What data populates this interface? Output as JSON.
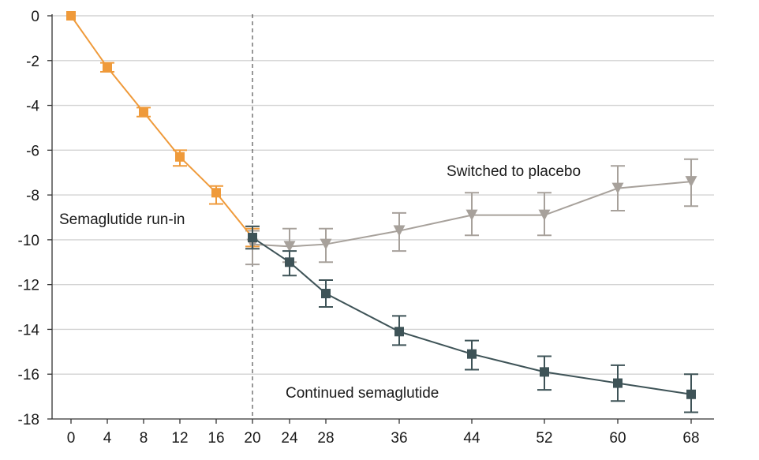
{
  "chart_data": {
    "type": "line",
    "x_ticks": [
      0,
      4,
      8,
      12,
      16,
      20,
      24,
      28,
      36,
      44,
      52,
      60,
      68
    ],
    "y_ticks": [
      0,
      -2,
      -4,
      -6,
      -8,
      -10,
      -12,
      -14,
      -16,
      -18
    ],
    "y_tick_labels": [
      "0",
      "-2",
      "-4",
      "-6",
      "-8",
      "-10",
      "-12",
      "-14",
      "-16",
      "-18"
    ],
    "ylim": [
      -18,
      0
    ],
    "grid": "horizontal",
    "reference_line_x": 20,
    "colors": {
      "run_in": "#ef9a3a",
      "continued": "#3e5357",
      "placebo": "#a7a19b",
      "grid": "#d3d3d3",
      "axis": "#333333"
    },
    "series": [
      {
        "name": "Semaglutide run-in",
        "marker": "square",
        "color": "#ef9a3a",
        "points": [
          {
            "x": 0,
            "y": 0,
            "lo": 0,
            "hi": 0
          },
          {
            "x": 4,
            "y": -2.3,
            "lo": -2.5,
            "hi": -2.1
          },
          {
            "x": 8,
            "y": -4.3,
            "lo": -4.5,
            "hi": -4.1
          },
          {
            "x": 12,
            "y": -6.3,
            "lo": -6.7,
            "hi": -6.0
          },
          {
            "x": 16,
            "y": -7.9,
            "lo": -8.4,
            "hi": -7.6
          },
          {
            "x": 20,
            "y": -9.9,
            "lo": -10.3,
            "hi": -9.5
          }
        ]
      },
      {
        "name": "Continued semaglutide",
        "marker": "square",
        "color": "#3e5357",
        "points": [
          {
            "x": 20,
            "y": -9.9,
            "lo": -10.4,
            "hi": -9.4
          },
          {
            "x": 24,
            "y": -11.0,
            "lo": -11.6,
            "hi": -10.5
          },
          {
            "x": 28,
            "y": -12.4,
            "lo": -13.0,
            "hi": -11.8
          },
          {
            "x": 36,
            "y": -14.1,
            "lo": -14.7,
            "hi": -13.4
          },
          {
            "x": 44,
            "y": -15.1,
            "lo": -15.8,
            "hi": -14.5
          },
          {
            "x": 52,
            "y": -15.9,
            "lo": -16.7,
            "hi": -15.2
          },
          {
            "x": 60,
            "y": -16.4,
            "lo": -17.2,
            "hi": -15.6
          },
          {
            "x": 68,
            "y": -16.9,
            "lo": -17.7,
            "hi": -16.0
          }
        ]
      },
      {
        "name": "Switched to placebo",
        "marker": "triangle-down",
        "color": "#a7a19b",
        "points": [
          {
            "x": 20,
            "y": -10.2,
            "lo": -11.1,
            "hi": -9.6
          },
          {
            "x": 24,
            "y": -10.3,
            "lo": -11.0,
            "hi": -9.5
          },
          {
            "x": 28,
            "y": -10.2,
            "lo": -11.0,
            "hi": -9.5
          },
          {
            "x": 36,
            "y": -9.6,
            "lo": -10.5,
            "hi": -8.8
          },
          {
            "x": 44,
            "y": -8.9,
            "lo": -9.8,
            "hi": -7.9
          },
          {
            "x": 52,
            "y": -8.9,
            "lo": -9.8,
            "hi": -7.9
          },
          {
            "x": 60,
            "y": -7.7,
            "lo": -8.7,
            "hi": -6.7
          },
          {
            "x": 68,
            "y": -7.4,
            "lo": -8.5,
            "hi": -6.4
          }
        ]
      }
    ],
    "annotations": {
      "run_in": "Semaglutide run-in",
      "placebo": "Switched to placebo",
      "continued": "Continued semaglutide"
    }
  }
}
